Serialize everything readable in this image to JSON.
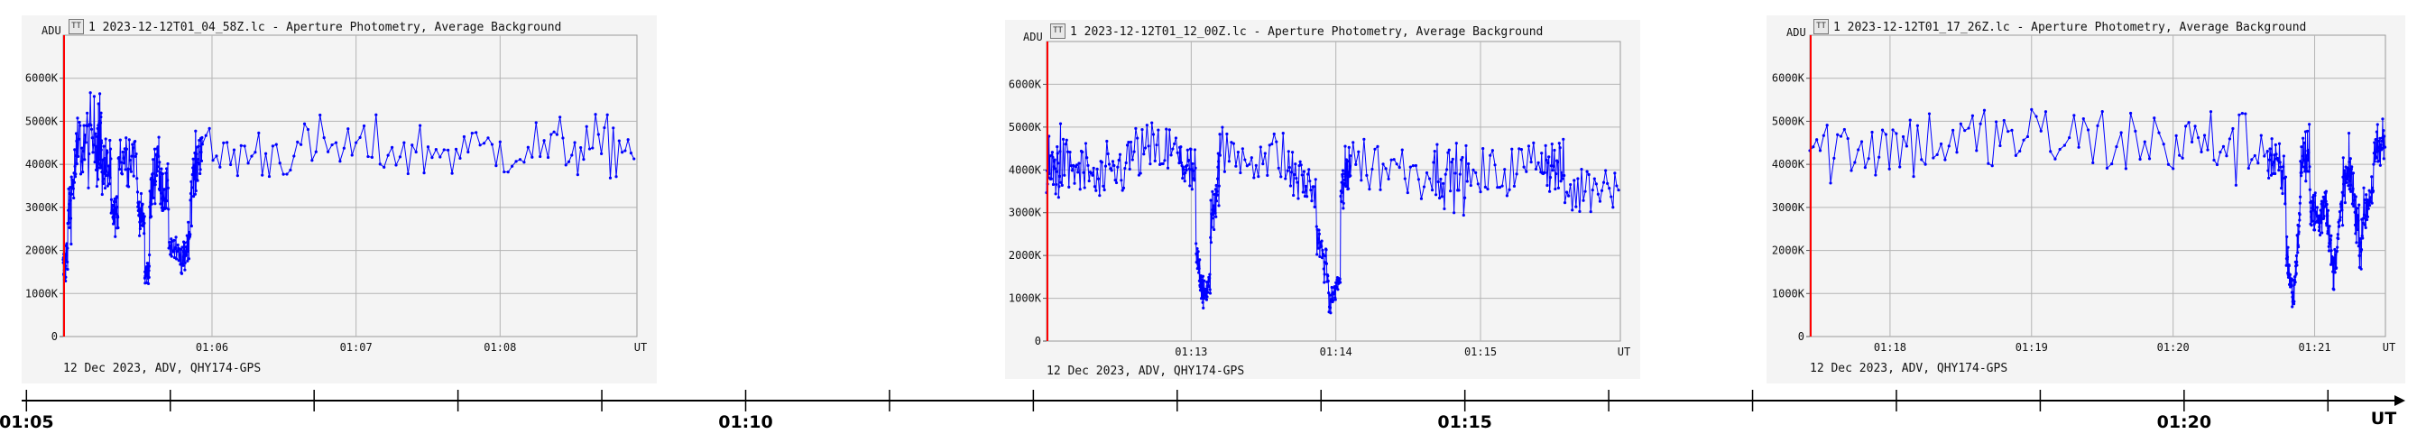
{
  "colors": {
    "series": "#0000ff",
    "cursor": "#ff0000",
    "grid": "#b4b4b4",
    "panel_bg": "#f4f4f4"
  },
  "icons": {
    "panel_icon": "light-curve-icon"
  },
  "panels": [
    {
      "id": "p1",
      "title": "1 2023-12-12T01_04_58Z.lc - Aperture Photometry, Average Background",
      "y_unit": "ADU",
      "x_unit": "UT",
      "footer": "12 Dec 2023, ADV, QHY174-GPS"
    },
    {
      "id": "p2",
      "title": "1 2023-12-12T01_12_00Z.lc - Aperture Photometry, Average Background",
      "y_unit": "ADU",
      "x_unit": "UT",
      "footer": "12 Dec 2023, ADV, QHY174-GPS"
    },
    {
      "id": "p3",
      "title": "1 2023-12-12T01_17_26Z.lc - Aperture Photometry, Average Background",
      "y_unit": "ADU",
      "x_unit": "UT",
      "footer": "12 Dec 2023, ADV, QHY174-GPS"
    }
  ],
  "chart_data": [
    {
      "type": "scatter",
      "title": "1 2023-12-12T01_04_58Z.lc - Aperture Photometry, Average Background",
      "ylabel": "ADU",
      "xlabel": "UT",
      "ylim": [
        0,
        7000000
      ],
      "xlim": [
        "01:04:58",
        "01:08:57"
      ],
      "y_ticks": [
        "0",
        "1000K",
        "2000K",
        "3000K",
        "4000K",
        "5000K",
        "6000K"
      ],
      "x_ticks": [
        "01:06",
        "01:07",
        "01:08"
      ],
      "grid": true,
      "series": [
        {
          "points_per_segment": 30,
          "segments": [
            [
              "01:04:58",
              1500000,
              2000000,
              400000
            ],
            [
              "01:05:00",
              2800000,
              4200000,
              600000
            ],
            [
              "01:05:04",
              4400000,
              4600000,
              700000
            ],
            [
              "01:05:12",
              4500000,
              4600000,
              700000
            ],
            [
              "01:05:14",
              4000000,
              3800000,
              500000
            ],
            [
              "01:05:18",
              2800000,
              2900000,
              300000
            ],
            [
              "01:05:21",
              4200000,
              4300000,
              500000
            ],
            [
              "01:05:29",
              3000000,
              2600000,
              300000
            ],
            [
              "01:05:32",
              1400000,
              1600000,
              200000
            ],
            [
              "01:05:34",
              3000000,
              4500000,
              500000
            ],
            [
              "01:05:38",
              3500000,
              3300000,
              400000
            ],
            [
              "01:05:42",
              2200000,
              1700000,
              250000
            ],
            [
              "01:05:48",
              1700000,
              2500000,
              300000
            ],
            [
              "01:05:51",
              3300000,
              4600000,
              500000
            ],
            [
              "01:05:56",
              4200000,
              4300000,
              500000
            ],
            [
              "01:06:40",
              4400000,
              4300000,
              500000
            ],
            [
              "01:07:30",
              4300000,
              4400000,
              500000
            ],
            [
              "01:08:20",
              4400000,
              4400000,
              500000
            ]
          ],
          "end": "01:08:57"
        }
      ]
    },
    {
      "type": "scatter",
      "title": "1 2023-12-12T01_12_00Z.lc - Aperture Photometry, Average Background",
      "ylabel": "ADU",
      "xlabel": "UT",
      "ylim": [
        0,
        7000000
      ],
      "xlim": [
        "01:12:00",
        "01:15:58"
      ],
      "y_ticks": [
        "0",
        "1000K",
        "2000K",
        "3000K",
        "4000K",
        "5000K",
        "6000K"
      ],
      "x_ticks": [
        "01:13",
        "01:14",
        "01:15"
      ],
      "grid": true,
      "series": [
        {
          "points_per_segment": 30,
          "segments": [
            [
              "01:12:00",
              3800000,
              4200000,
              600000
            ],
            [
              "01:12:06",
              4100000,
              3900000,
              500000
            ],
            [
              "01:12:20",
              3600000,
              4200000,
              500000
            ],
            [
              "01:12:35",
              4400000,
              4400000,
              500000
            ],
            [
              "01:12:55",
              4200000,
              3800000,
              500000
            ],
            [
              "01:13:02",
              2000000,
              1200000,
              300000
            ],
            [
              "01:13:05",
              1000000,
              1400000,
              200000
            ],
            [
              "01:13:08",
              2600000,
              4200000,
              500000
            ],
            [
              "01:13:12",
              4400000,
              4300000,
              500000
            ],
            [
              "01:13:40",
              4000000,
              3500000,
              500000
            ],
            [
              "01:13:52",
              2500000,
              1500000,
              300000
            ],
            [
              "01:13:57",
              800000,
              1500000,
              200000
            ],
            [
              "01:14:02",
              3300000,
              4300000,
              500000
            ],
            [
              "01:14:06",
              4200000,
              4000000,
              500000
            ],
            [
              "01:14:40",
              4000000,
              3800000,
              500000
            ],
            [
              "01:14:55",
              3700000,
              4200000,
              500000
            ],
            [
              "01:15:25",
              4300000,
              3900000,
              500000
            ],
            [
              "01:15:35",
              3400000,
              3900000,
              500000
            ]
          ],
          "end": "01:15:58"
        }
      ]
    },
    {
      "type": "scatter",
      "title": "1 2023-12-12T01_17_26Z.lc - Aperture Photometry, Average Background",
      "ylabel": "ADU",
      "xlabel": "UT",
      "ylim": [
        0,
        7000000
      ],
      "xlim": [
        "01:17:26",
        "01:21:30"
      ],
      "y_ticks": [
        "0",
        "1000K",
        "2000K",
        "3000K",
        "4000K",
        "5000K",
        "6000K"
      ],
      "x_ticks": [
        "01:18",
        "01:19",
        "01:20",
        "01:21"
      ],
      "grid": true,
      "series": [
        {
          "points_per_segment": 30,
          "segments": [
            [
              "01:17:26",
              4400000,
              4500000,
              650000
            ],
            [
              "01:18:10",
              4500000,
              4600000,
              650000
            ],
            [
              "01:19:00",
              4600000,
              4500000,
              650000
            ],
            [
              "01:20:00",
              4500000,
              4400000,
              650000
            ],
            [
              "01:20:40",
              4300000,
              3500000,
              500000
            ],
            [
              "01:20:48",
              2000000,
              800000,
              300000
            ],
            [
              "01:20:51",
              900000,
              3000000,
              300000
            ],
            [
              "01:20:54",
              4200000,
              4000000,
              500000
            ],
            [
              "01:20:58",
              3200000,
              2600000,
              400000
            ],
            [
              "01:21:02",
              2600000,
              3400000,
              400000
            ],
            [
              "01:21:05",
              3000000,
              1400000,
              300000
            ],
            [
              "01:21:08",
              1500000,
              3200000,
              300000
            ],
            [
              "01:21:12",
              3500000,
              3800000,
              500000
            ],
            [
              "01:21:16",
              3400000,
              2000000,
              400000
            ],
            [
              "01:21:20",
              2600000,
              3600000,
              400000
            ],
            [
              "01:21:25",
              4000000,
              4600000,
              500000
            ]
          ],
          "end": "01:21:30"
        }
      ]
    },
    {
      "type": "line",
      "title": "",
      "xlabel": "UT",
      "xlim": [
        "01:04:58",
        "01:21:30"
      ],
      "x_ticks": [
        "01:05",
        "01:10",
        "01:15",
        "01:20"
      ],
      "minor_tick_interval_s": 60
    }
  ]
}
